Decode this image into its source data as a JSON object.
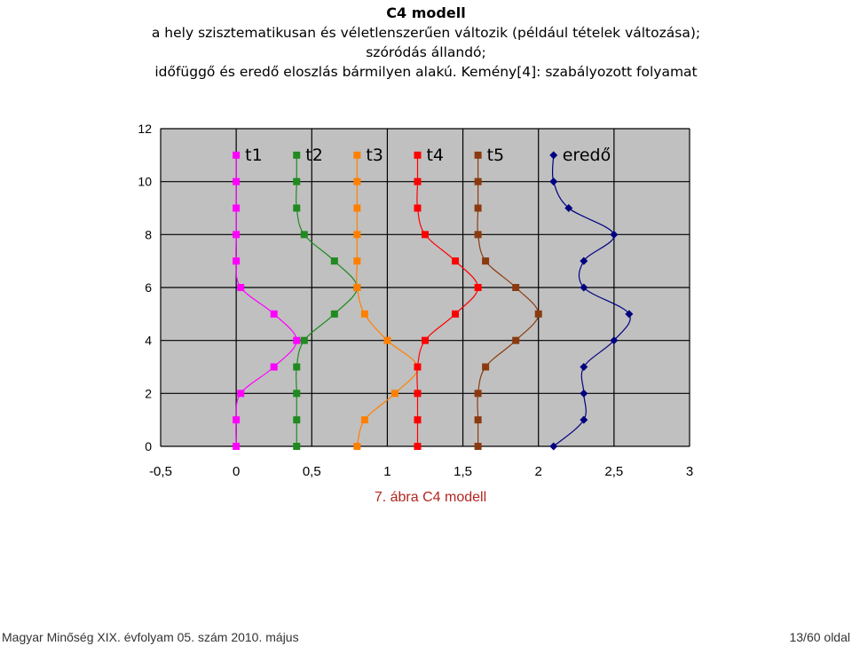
{
  "header": {
    "title": "C4 modell",
    "line1": "a hely szisztematikusan és véletlenszerűen változik (például tételek változása);",
    "line2": "szóródás állandó;",
    "line3": "időfüggő és eredő eloszlás bármilyen alakú. Kemény[4]: szabályozott folyamat"
  },
  "caption": "7. ábra C4 modell",
  "footer": {
    "left": "Magyar Minőség XIX. évfolyam 05. szám 2010. május",
    "right": "13/60 oldal"
  },
  "chart_data": {
    "type": "scatter",
    "xlim": [
      -0.5,
      3
    ],
    "ylim": [
      0,
      12
    ],
    "x_ticks": [
      "-0,5",
      "0",
      "0,5",
      "1",
      "1,5",
      "2",
      "2,5",
      "3"
    ],
    "y_ticks": [
      "0",
      "2",
      "4",
      "6",
      "8",
      "10",
      "12"
    ],
    "grid": true,
    "background": "#c0c0c0",
    "series": [
      {
        "name": "t1",
        "color": "#ff00ff",
        "marker": "square",
        "x": [
          0,
          0,
          0.03,
          0.25,
          0.4,
          0.25,
          0.03,
          0,
          0,
          0,
          0,
          0
        ],
        "y": [
          0,
          1,
          2,
          3,
          4,
          5,
          6,
          7,
          8,
          9,
          10,
          11
        ]
      },
      {
        "name": "t2",
        "color": "#1f8a1f",
        "marker": "square",
        "x": [
          0.4,
          0.4,
          0.4,
          0.4,
          0.45,
          0.65,
          0.8,
          0.65,
          0.45,
          0.4,
          0.4,
          0.4
        ],
        "y": [
          0,
          1,
          2,
          3,
          4,
          5,
          6,
          7,
          8,
          9,
          10,
          11
        ]
      },
      {
        "name": "t3",
        "color": "#ff8000",
        "marker": "square",
        "x": [
          0.8,
          0.85,
          1.05,
          1.2,
          1.0,
          0.85,
          0.8,
          0.8,
          0.8,
          0.8,
          0.8,
          0.8
        ],
        "y": [
          0,
          1,
          2,
          3,
          4,
          5,
          6,
          7,
          8,
          9,
          10,
          11
        ]
      },
      {
        "name": "t4",
        "color": "#ff0000",
        "marker": "square",
        "x": [
          1.2,
          1.2,
          1.2,
          1.2,
          1.25,
          1.45,
          1.6,
          1.45,
          1.25,
          1.2,
          1.2,
          1.2
        ],
        "y": [
          0,
          1,
          2,
          3,
          4,
          5,
          6,
          7,
          8,
          9,
          10,
          11
        ]
      },
      {
        "name": "t5",
        "color": "#8b3a0f",
        "marker": "square",
        "x": [
          1.6,
          1.6,
          1.6,
          1.65,
          1.85,
          2.0,
          1.85,
          1.65,
          1.6,
          1.6,
          1.6,
          1.6
        ],
        "y": [
          0,
          1,
          2,
          3,
          4,
          5,
          6,
          7,
          8,
          9,
          10,
          11
        ]
      },
      {
        "name": "eredő",
        "color": "#000080",
        "marker": "diamond",
        "x": [
          2.1,
          2.3,
          2.3,
          2.3,
          2.5,
          2.6,
          2.3,
          2.3,
          2.5,
          2.2,
          2.1,
          2.1
        ],
        "y": [
          0,
          1,
          2,
          3,
          4,
          5,
          6,
          7,
          8,
          9,
          10,
          11
        ]
      }
    ],
    "legend_labels": [
      {
        "text": "t1",
        "x": 0,
        "y": 11
      },
      {
        "text": "t2",
        "x": 0.4,
        "y": 11
      },
      {
        "text": "t3",
        "x": 0.8,
        "y": 11
      },
      {
        "text": "t4",
        "x": 1.2,
        "y": 11
      },
      {
        "text": "t5",
        "x": 1.6,
        "y": 11
      },
      {
        "text": "eredő",
        "x": 2.1,
        "y": 11
      }
    ]
  }
}
